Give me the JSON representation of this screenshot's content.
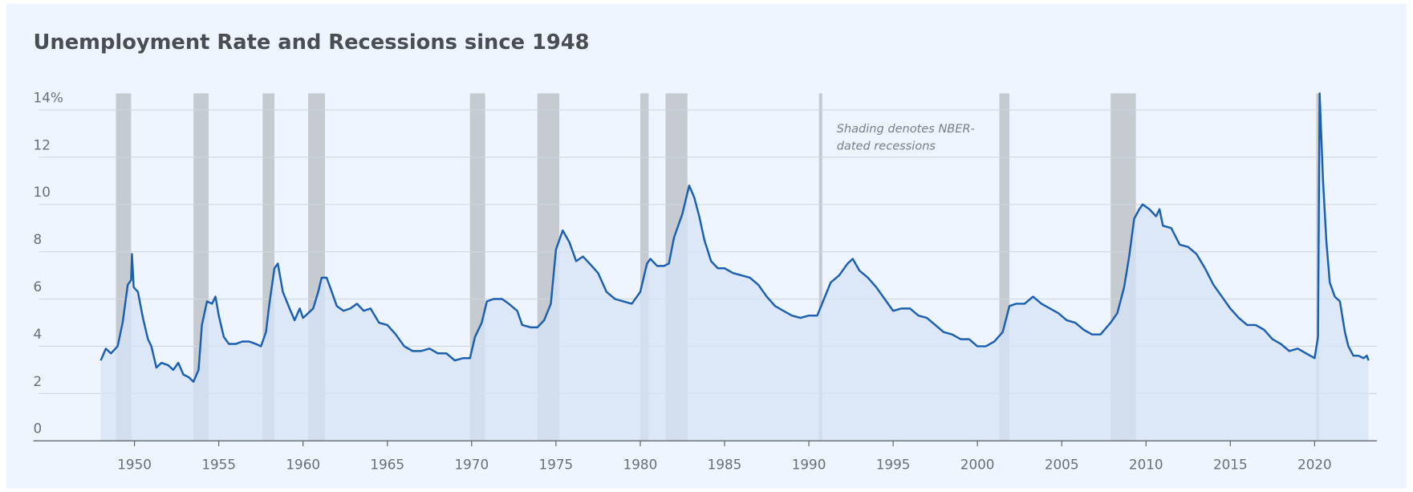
{
  "chart_data": {
    "type": "area",
    "title": "Unemployment Rate and Recessions since 1948",
    "annotation": [
      "Shading denotes NBER-",
      "dated recessions"
    ],
    "color": "#1a5fb4",
    "fill": "#d5e3f5",
    "recession_color": "#c6cad1",
    "grid": true,
    "xlim": [
      1944,
      2023.7
    ],
    "xticks": [
      1950,
      1955,
      1960,
      1965,
      1970,
      1975,
      1980,
      1985,
      1990,
      1995,
      2000,
      2005,
      2010,
      2015,
      2020
    ],
    "ylim": [
      0,
      14.7
    ],
    "yticks": [
      0,
      2,
      4,
      6,
      8,
      10,
      12,
      {
        "value": 14,
        "label": "14%"
      }
    ],
    "recessions": [
      {
        "start": 1948.9,
        "end": 1949.8
      },
      {
        "start": 1953.5,
        "end": 1954.4
      },
      {
        "start": 1957.6,
        "end": 1958.3
      },
      {
        "start": 1960.3,
        "end": 1961.3
      },
      {
        "start": 1969.9,
        "end": 1970.8
      },
      {
        "start": 1973.9,
        "end": 1975.2
      },
      {
        "start": 1980.0,
        "end": 1980.5
      },
      {
        "start": 1981.5,
        "end": 1982.8
      },
      {
        "start": 1990.6,
        "end": 1990.8
      },
      {
        "start": 2001.3,
        "end": 2001.9
      },
      {
        "start": 2007.9,
        "end": 2009.4
      },
      {
        "start": 2020.1,
        "end": 2020.25
      }
    ],
    "x": [
      1948.0,
      1948.3,
      1948.6,
      1949.0,
      1949.3,
      1949.6,
      1949.8,
      1949.85,
      1949.95,
      1950.2,
      1950.5,
      1950.8,
      1951.0,
      1951.3,
      1951.6,
      1952.0,
      1952.3,
      1952.6,
      1952.9,
      1953.2,
      1953.5,
      1953.8,
      1954.0,
      1954.3,
      1954.6,
      1954.8,
      1955.0,
      1955.3,
      1955.6,
      1956.0,
      1956.4,
      1956.8,
      1957.2,
      1957.5,
      1957.8,
      1958.0,
      1958.3,
      1958.5,
      1958.8,
      1959.2,
      1959.5,
      1959.8,
      1960.0,
      1960.3,
      1960.6,
      1960.9,
      1961.1,
      1961.4,
      1961.7,
      1962.0,
      1962.4,
      1962.8,
      1963.2,
      1963.6,
      1964.0,
      1964.5,
      1965.0,
      1965.5,
      1966.0,
      1966.5,
      1967.0,
      1967.5,
      1968.0,
      1968.5,
      1969.0,
      1969.5,
      1969.9,
      1970.2,
      1970.6,
      1970.9,
      1971.3,
      1971.8,
      1972.2,
      1972.7,
      1973.0,
      1973.5,
      1973.9,
      1974.3,
      1974.7,
      1975.0,
      1975.4,
      1975.8,
      1976.2,
      1976.6,
      1977.0,
      1977.5,
      1978.0,
      1978.5,
      1979.0,
      1979.5,
      1980.0,
      1980.4,
      1980.6,
      1981.0,
      1981.4,
      1981.7,
      1982.0,
      1982.5,
      1982.9,
      1983.2,
      1983.5,
      1983.8,
      1984.2,
      1984.6,
      1985.0,
      1985.5,
      1986.0,
      1986.5,
      1987.0,
      1987.5,
      1988.0,
      1988.5,
      1989.0,
      1989.5,
      1990.0,
      1990.5,
      1990.9,
      1991.3,
      1991.8,
      1992.3,
      1992.6,
      1993.0,
      1993.5,
      1994.0,
      1994.5,
      1995.0,
      1995.5,
      1996.0,
      1996.5,
      1997.0,
      1997.5,
      1998.0,
      1998.5,
      1999.0,
      1999.5,
      2000.0,
      2000.5,
      2001.0,
      2001.5,
      2001.9,
      2002.3,
      2002.8,
      2003.3,
      2003.8,
      2004.3,
      2004.8,
      2005.3,
      2005.8,
      2006.3,
      2006.8,
      2007.3,
      2007.9,
      2008.3,
      2008.7,
      2009.0,
      2009.3,
      2009.6,
      2009.8,
      2010.2,
      2010.6,
      2010.8,
      2011.0,
      2011.5,
      2012.0,
      2012.5,
      2013.0,
      2013.5,
      2014.0,
      2014.5,
      2015.0,
      2015.5,
      2016.0,
      2016.5,
      2017.0,
      2017.5,
      2018.0,
      2018.5,
      2019.0,
      2019.5,
      2020.0,
      2020.2,
      2020.3,
      2020.5,
      2020.7,
      2020.9,
      2021.2,
      2021.5,
      2021.8,
      2022.0,
      2022.3,
      2022.6,
      2022.9,
      2023.1,
      2023.2
    ],
    "values": [
      3.4,
      3.9,
      3.7,
      4.0,
      5.0,
      6.6,
      6.8,
      7.9,
      6.5,
      6.3,
      5.2,
      4.3,
      4.0,
      3.1,
      3.3,
      3.2,
      3.0,
      3.3,
      2.8,
      2.7,
      2.5,
      3.0,
      4.9,
      5.9,
      5.8,
      6.1,
      5.3,
      4.4,
      4.1,
      4.1,
      4.2,
      4.2,
      4.1,
      4.0,
      4.6,
      5.8,
      7.3,
      7.5,
      6.3,
      5.6,
      5.1,
      5.6,
      5.2,
      5.4,
      5.6,
      6.3,
      6.9,
      6.9,
      6.3,
      5.7,
      5.5,
      5.6,
      5.8,
      5.5,
      5.6,
      5.0,
      4.9,
      4.5,
      4.0,
      3.8,
      3.8,
      3.9,
      3.7,
      3.7,
      3.4,
      3.5,
      3.5,
      4.4,
      5.0,
      5.9,
      6.0,
      6.0,
      5.8,
      5.5,
      4.9,
      4.8,
      4.8,
      5.1,
      5.8,
      8.1,
      8.9,
      8.4,
      7.6,
      7.8,
      7.5,
      7.1,
      6.3,
      6.0,
      5.9,
      5.8,
      6.3,
      7.5,
      7.7,
      7.4,
      7.4,
      7.5,
      8.6,
      9.6,
      10.8,
      10.3,
      9.5,
      8.5,
      7.6,
      7.3,
      7.3,
      7.1,
      7.0,
      6.9,
      6.6,
      6.1,
      5.7,
      5.5,
      5.3,
      5.2,
      5.3,
      5.3,
      6.0,
      6.7,
      7.0,
      7.5,
      7.7,
      7.2,
      6.9,
      6.5,
      6.0,
      5.5,
      5.6,
      5.6,
      5.3,
      5.2,
      4.9,
      4.6,
      4.5,
      4.3,
      4.3,
      4.0,
      4.0,
      4.2,
      4.6,
      5.7,
      5.8,
      5.8,
      6.1,
      5.8,
      5.6,
      5.4,
      5.1,
      5.0,
      4.7,
      4.5,
      4.5,
      5.0,
      5.4,
      6.5,
      7.8,
      9.4,
      9.8,
      10.0,
      9.8,
      9.5,
      9.8,
      9.1,
      9.0,
      8.3,
      8.2,
      7.9,
      7.3,
      6.6,
      6.1,
      5.6,
      5.2,
      4.9,
      4.9,
      4.7,
      4.3,
      4.1,
      3.8,
      3.9,
      3.7,
      3.5,
      4.4,
      14.7,
      11.0,
      8.4,
      6.7,
      6.1,
      5.9,
      4.6,
      4.0,
      3.6,
      3.6,
      3.5,
      3.6,
      3.4
    ]
  }
}
